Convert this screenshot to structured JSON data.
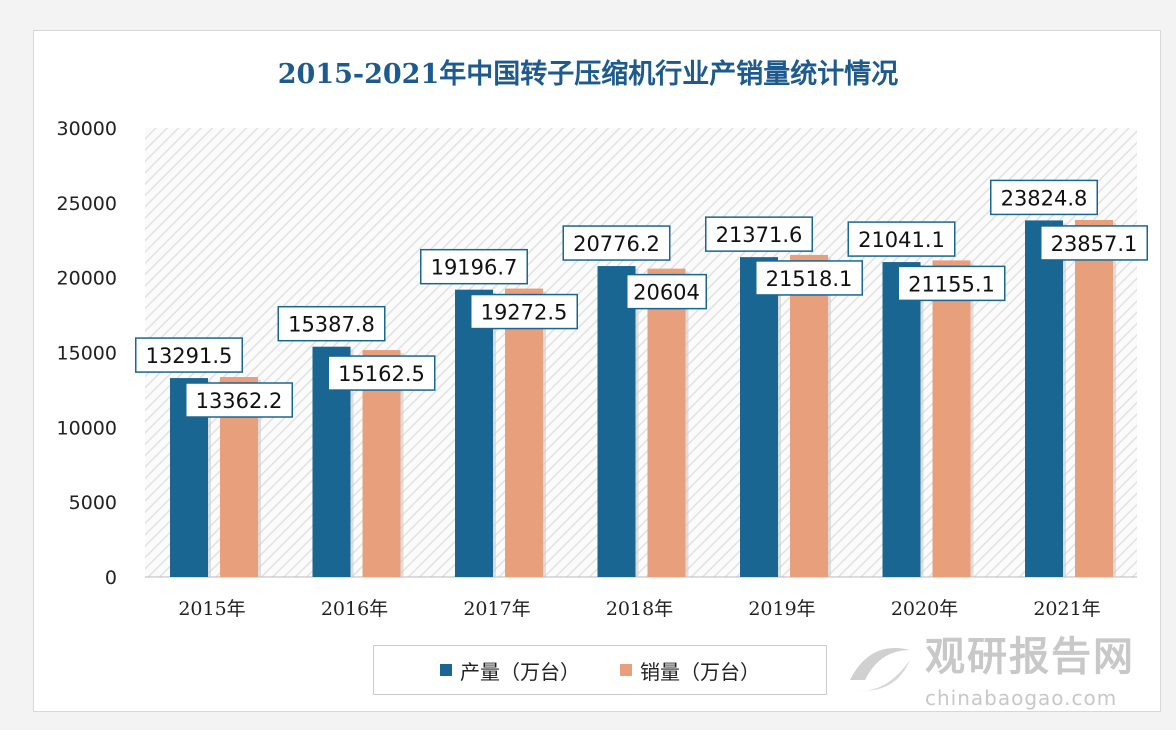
{
  "chart_data": {
    "type": "bar",
    "title": "2015-2021年中国转子压缩机行业产销量统计情况",
    "categories": [
      "2015年",
      "2016年",
      "2017年",
      "2018年",
      "2019年",
      "2020年",
      "2021年"
    ],
    "series": [
      {
        "name": "产量（万台）",
        "color": "#1a6693",
        "values": [
          13291.5,
          15387.8,
          19196.7,
          20776.2,
          21371.6,
          21041.1,
          23824.8
        ],
        "labels": [
          "13291.5",
          "15387.8",
          "19196.7",
          "20776.2",
          "21371.6",
          "21041.1",
          "23824.8"
        ]
      },
      {
        "name": "销量（万台）",
        "color": "#e8a07c",
        "values": [
          13362.2,
          15162.5,
          19272.5,
          20604,
          21518.1,
          21155.1,
          23857.1
        ],
        "labels": [
          "13362.2",
          "15162.5",
          "19272.5",
          "20604",
          "21518.1",
          "21155.1",
          "23857.1"
        ]
      }
    ],
    "ylim": [
      0,
      30000
    ],
    "yticks": [
      "0",
      "5000",
      "10000",
      "15000",
      "20000",
      "25000",
      "30000"
    ],
    "legend": "bottom",
    "grid": false
  },
  "watermark": {
    "cn": "观研报告网",
    "en": "chinabaogao.com"
  }
}
